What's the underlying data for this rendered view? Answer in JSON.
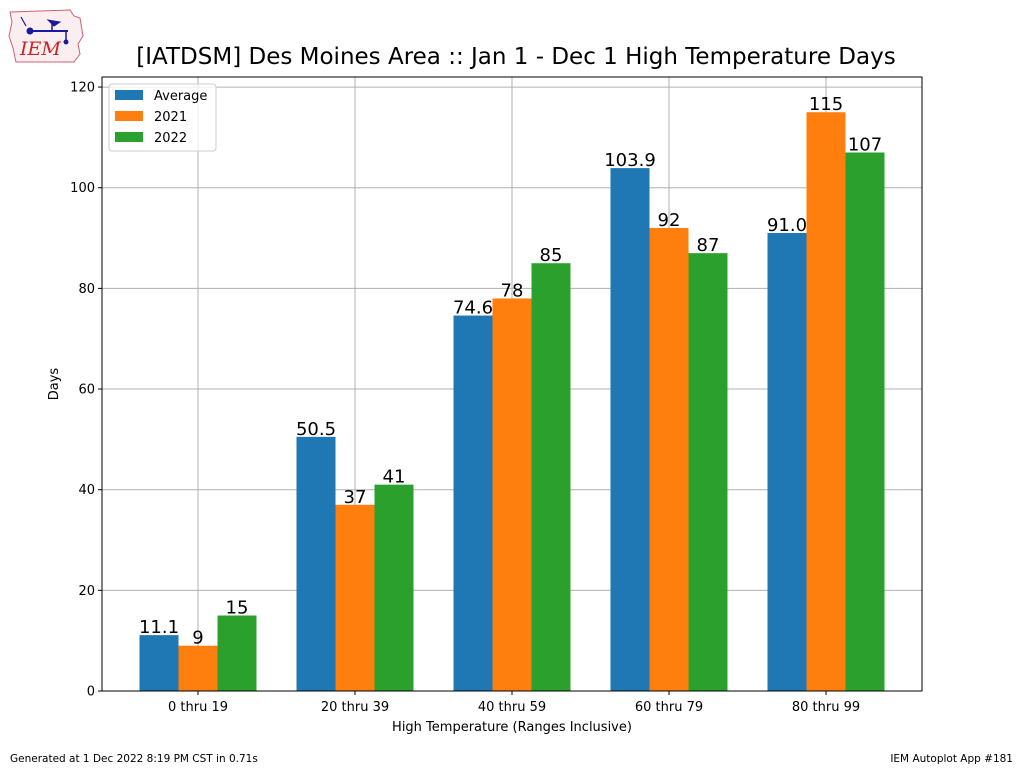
{
  "logo": {
    "text": "IEM"
  },
  "footer": {
    "left": "Generated at 1 Dec 2022 8:19 PM CST in 0.71s",
    "right": "IEM Autoplot App #181"
  },
  "colors": {
    "Average": "#1f77b4",
    "2021": "#ff7f0e",
    "2022": "#2ca02c"
  },
  "chart_data": {
    "type": "bar",
    "title": "[IATDSM] Des Moines Area :: Jan 1 - Dec 1 High Temperature Days",
    "xlabel": "High Temperature (Ranges Inclusive)",
    "ylabel": "Days",
    "ylim": [
      0,
      122
    ],
    "yticks": [
      0,
      20,
      40,
      60,
      80,
      100,
      120
    ],
    "grid": true,
    "legend_position": "top-left",
    "categories": [
      "0 thru 19",
      "20 thru 39",
      "40 thru 59",
      "60 thru 79",
      "80 thru 99"
    ],
    "series": [
      {
        "name": "Average",
        "values": [
          11.1,
          50.5,
          74.6,
          103.9,
          91.0
        ],
        "labels": [
          "11.1",
          "50.5",
          "74.6",
          "103.9",
          "91.0"
        ],
        "color": "#1f77b4"
      },
      {
        "name": "2021",
        "values": [
          9,
          37,
          78,
          92,
          115
        ],
        "labels": [
          "9",
          "37",
          "78",
          "92",
          "115"
        ],
        "color": "#ff7f0e"
      },
      {
        "name": "2022",
        "values": [
          15,
          41,
          85,
          87,
          107
        ],
        "labels": [
          "15",
          "41",
          "85",
          "87",
          "107"
        ],
        "color": "#2ca02c"
      }
    ]
  }
}
